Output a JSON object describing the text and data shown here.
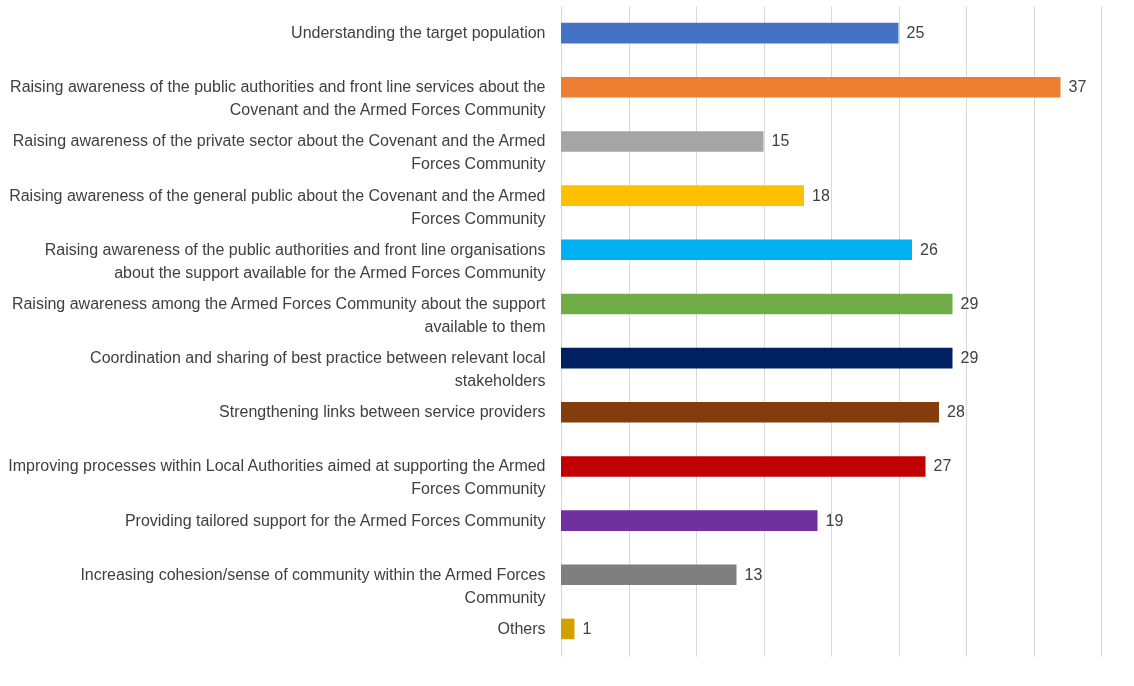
{
  "chart_data": {
    "type": "bar",
    "orientation": "horizontal",
    "categories": [
      "Understanding the target population",
      "Raising awareness of the public authorities and front line services about the Covenant and the Armed Forces Community",
      "Raising awareness of the private sector about the Covenant and the Armed Forces Community",
      "Raising awareness of the general public about the Covenant and the Armed Forces Community",
      "Raising awareness of the public authorities and front line organisations about the support available for the Armed Forces Community",
      "Raising awareness among the Armed Forces Community about the support available to them",
      "Coordination and sharing of best practice between relevant local stakeholders",
      "Strengthening links between service providers",
      "Improving processes within Local Authorities aimed at supporting the Armed Forces Community",
      "Providing tailored support for the Armed Forces Community",
      "Increasing cohesion/sense of community within the Armed Forces Community",
      "Others"
    ],
    "values": [
      25,
      37,
      15,
      18,
      26,
      29,
      29,
      28,
      27,
      19,
      13,
      1
    ],
    "colors": [
      "#4472c4",
      "#ed7d31",
      "#a5a5a5",
      "#ffc000",
      "#00b0f0",
      "#70ad47",
      "#002060",
      "#843c0c",
      "#c00000",
      "#7030a0",
      "#7f7f7f",
      "#d4a000"
    ],
    "xlim": [
      0,
      40
    ],
    "xticks": [
      {
        "value": 0,
        "label": null
      },
      {
        "value": 5,
        "label": null
      },
      {
        "value": 10,
        "label": null
      },
      {
        "value": 15,
        "label": null
      },
      {
        "value": 20,
        "label": null
      },
      {
        "value": 25,
        "label": null
      },
      {
        "value": 30,
        "label": null
      },
      {
        "value": 35,
        "label": null
      },
      {
        "value": 40,
        "label": null
      }
    ],
    "tick_labels": "y",
    "grid": "x",
    "data_labels": true
  }
}
